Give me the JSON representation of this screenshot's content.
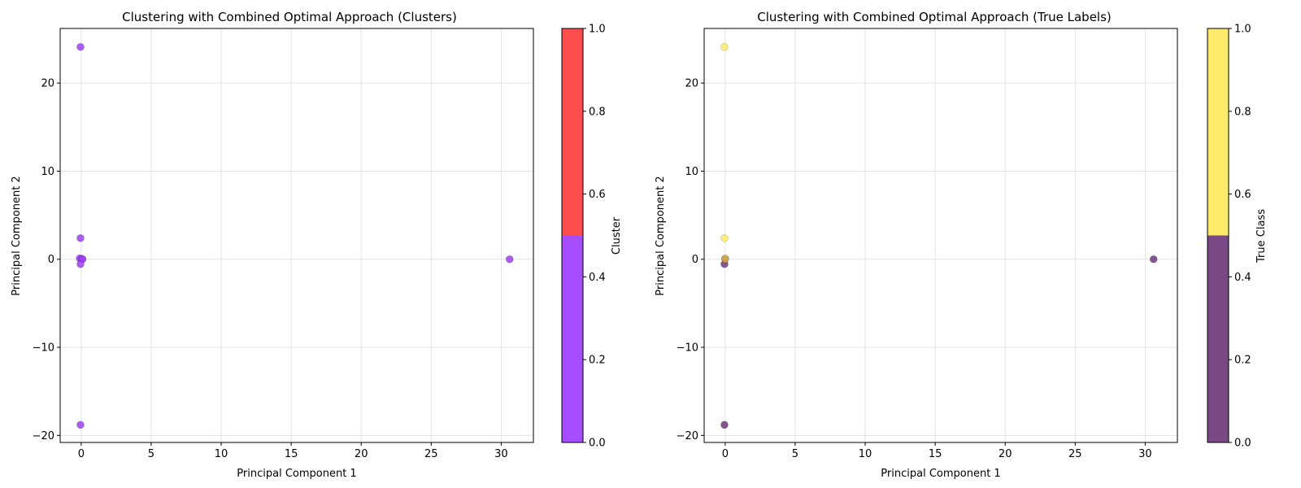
{
  "chart_data": [
    {
      "type": "scatter",
      "title": "Clustering with Combined Optimal Approach (Clusters)",
      "xlabel": "Principal Component 1",
      "ylabel": "Principal Component 2",
      "xlim": [
        -1.5,
        32.3
      ],
      "ylim": [
        -20.8,
        26.2
      ],
      "xticks": [
        0,
        5,
        10,
        15,
        20,
        25,
        30
      ],
      "yticks": [
        -20,
        -10,
        0,
        10,
        20
      ],
      "grid": true,
      "colorbar": {
        "label": "Cluster",
        "range": [
          0.0,
          1.0
        ],
        "ticks": [
          "0.0",
          "0.2",
          "0.4",
          "0.6",
          "0.8",
          "1.0"
        ],
        "colors": [
          "#a64dff",
          "#ff4d4d"
        ]
      },
      "series": [
        {
          "color": "#9b3ff2",
          "points": [
            {
              "x": -0.05,
              "y": 24.1
            },
            {
              "x": -0.05,
              "y": 2.4
            },
            {
              "x": -0.1,
              "y": 0.1
            },
            {
              "x": 0.05,
              "y": 0.05
            },
            {
              "x": 0.1,
              "y": 0.0
            },
            {
              "x": -0.05,
              "y": -0.55
            },
            {
              "x": -0.05,
              "y": -18.8
            },
            {
              "x": 30.6,
              "y": 0.0
            }
          ]
        }
      ]
    },
    {
      "type": "scatter",
      "title": "Clustering with Combined Optimal Approach (True Labels)",
      "xlabel": "Principal Component 1",
      "ylabel": "Principal Component 2",
      "xlim": [
        -1.5,
        32.3
      ],
      "ylim": [
        -20.8,
        26.2
      ],
      "xticks": [
        0,
        5,
        10,
        15,
        20,
        25,
        30
      ],
      "yticks": [
        -20,
        -10,
        0,
        10,
        20
      ],
      "grid": true,
      "colorbar": {
        "label": "True Class",
        "range": [
          0.0,
          1.0
        ],
        "ticks": [
          "0.0",
          "0.2",
          "0.4",
          "0.6",
          "0.8",
          "1.0"
        ],
        "colors": [
          "#7a4985",
          "#fdea6a"
        ]
      },
      "series": [
        {
          "color": "#fdea6a",
          "points": [
            {
              "x": -0.05,
              "y": 24.1
            },
            {
              "x": -0.05,
              "y": 2.4
            },
            {
              "x": 0.0,
              "y": 0.1
            }
          ]
        },
        {
          "color": "#6f3a7a",
          "points": [
            {
              "x": -0.05,
              "y": -0.55
            },
            {
              "x": -0.05,
              "y": -18.8
            },
            {
              "x": 30.6,
              "y": 0.0
            }
          ]
        },
        {
          "color": "#c89a4a",
          "points": [
            {
              "x": 0.0,
              "y": 0.0
            }
          ]
        }
      ]
    }
  ]
}
